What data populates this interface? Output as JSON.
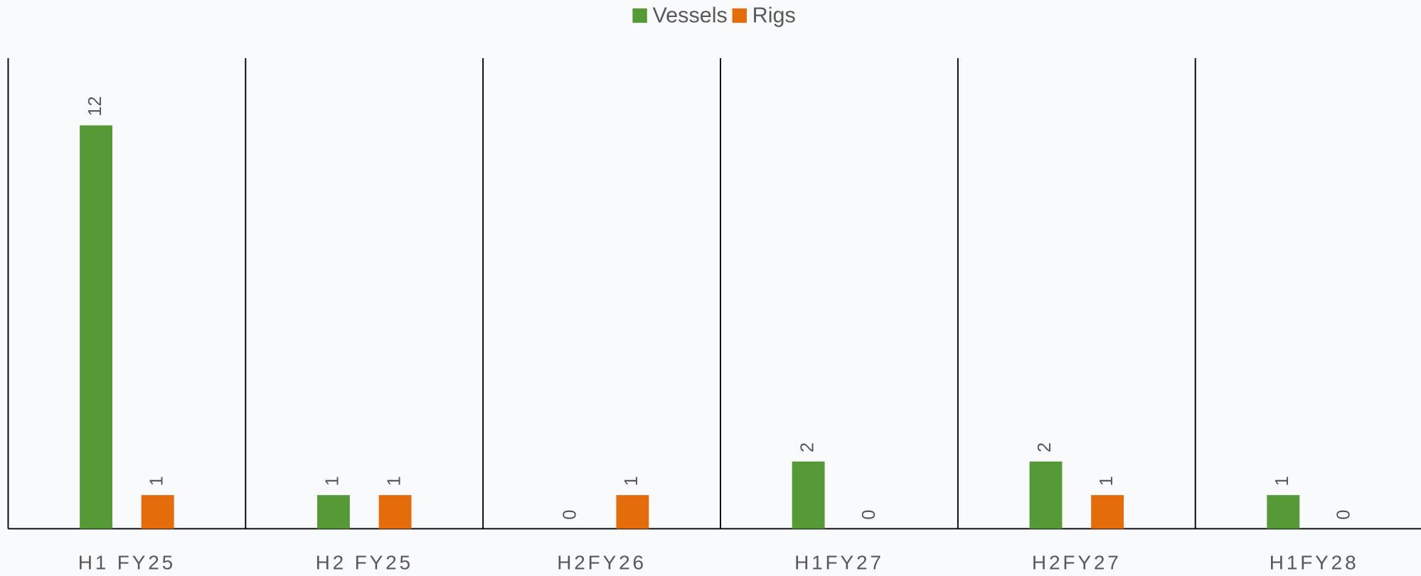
{
  "chart_data": {
    "type": "bar",
    "categories": [
      "H1 FY25",
      "H2 FY25",
      "H2FY26",
      "H1FY27",
      "H2FY27",
      "H1FY28"
    ],
    "series": [
      {
        "name": "Vessels",
        "color": "#559a37",
        "values": [
          12,
          1,
          0,
          2,
          2,
          1
        ]
      },
      {
        "name": "Rigs",
        "color": "#e46c0a",
        "values": [
          1,
          1,
          1,
          0,
          1,
          0
        ]
      }
    ],
    "ylim": [
      0,
      14
    ],
    "legend": "top",
    "grid": false
  }
}
